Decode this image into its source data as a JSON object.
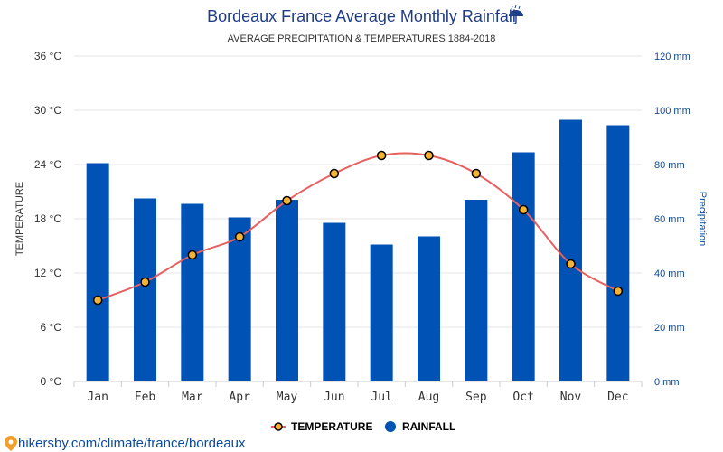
{
  "chart_data": {
    "type": "bar",
    "title": "Bordeaux France Average Monthly Rainfall",
    "title_icon": "umbrella-icon",
    "subtitle": "AVERAGE PRECIPITATION & TEMPERATURES 1884-2018",
    "categories": [
      "Jan",
      "Feb",
      "Mar",
      "Apr",
      "May",
      "Jun",
      "Jul",
      "Aug",
      "Sep",
      "Oct",
      "Nov",
      "Dec"
    ],
    "series": [
      {
        "name": "RAINFALL",
        "type": "bar",
        "axis": "right",
        "unit": "mm",
        "color": "#0052b4",
        "values": [
          80.5,
          67.5,
          65.5,
          60.5,
          67,
          58.5,
          50.5,
          53.5,
          67,
          84.5,
          96.5,
          94.5
        ]
      },
      {
        "name": "TEMPERATURE",
        "type": "line",
        "axis": "left",
        "unit": "°C",
        "color": "#e86060",
        "marker_color": "#f5b335",
        "values": [
          9,
          11,
          14,
          16,
          20,
          23,
          25,
          25,
          23,
          19,
          13,
          10
        ]
      }
    ],
    "y_left": {
      "label": "TEMPERATURE",
      "range": [
        0,
        36
      ],
      "ticks": [
        0,
        6,
        12,
        18,
        24,
        30,
        36
      ],
      "tick_labels": [
        "0 °C",
        "6 °C",
        "12 °C",
        "18 °C",
        "24 °C",
        "30 °C",
        "36 °C"
      ]
    },
    "y_right": {
      "label": "Precipitation",
      "range": [
        0,
        120
      ],
      "ticks": [
        0,
        20,
        40,
        60,
        80,
        100,
        120
      ],
      "tick_labels": [
        "0 mm",
        "20 mm",
        "40 mm",
        "60 mm",
        "80 mm",
        "100 mm",
        "120 mm"
      ]
    },
    "grid": true,
    "legend": {
      "position": "bottom-center",
      "items": [
        {
          "label": "TEMPERATURE",
          "icon": "line-marker-icon"
        },
        {
          "label": "RAINFALL",
          "icon": "circle-icon"
        }
      ]
    }
  },
  "source": {
    "icon": "location-pin-icon",
    "text": "hikersby.com/climate/france/bordeaux"
  }
}
